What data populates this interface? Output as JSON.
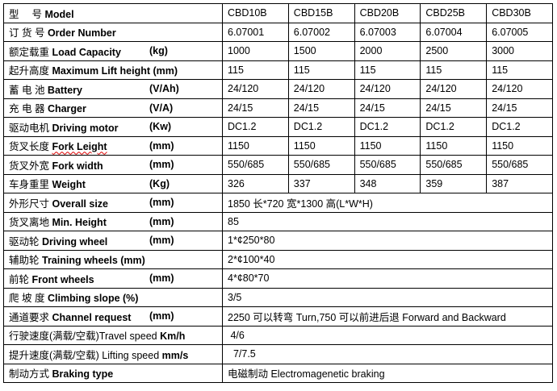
{
  "models": [
    "CBD10B",
    "CBD15B",
    "CBD20B",
    "CBD25B",
    "CBD30B"
  ],
  "rows": [
    {
      "cn": "型　 号",
      "en": "Model",
      "unit": "",
      "values": [
        "CBD10B",
        "CBD15B",
        "CBD20B",
        "CBD25B",
        "CBD30B"
      ]
    },
    {
      "cn": "订 货 号",
      "en": "Order Number",
      "unit": "",
      "values": [
        "6.07001",
        "6.07002",
        "6.07003",
        "6.07004",
        "6.07005"
      ]
    },
    {
      "cn": "额定载重 ",
      "en": "Load Capacity",
      "unit": "(kg)",
      "values": [
        "1000",
        "1500",
        "2000",
        "2500",
        "3000"
      ]
    },
    {
      "cn": "起升高度",
      "en": "Maximum Lift height (mm)",
      "unit": "",
      "values": [
        "115",
        "115",
        "115",
        "115",
        "115"
      ]
    },
    {
      "cn": "蓄 电 池 ",
      "en": "Battery",
      "unit": "(V/Ah)",
      "values": [
        "24/120",
        "24/120",
        "24/120",
        "24/120",
        "24/120"
      ]
    },
    {
      "cn": "充 电 器",
      "en": "Charger",
      "unit": "(V/A)",
      "values": [
        "24/15",
        "24/15",
        "24/15",
        "24/15",
        "24/15"
      ]
    },
    {
      "cn": "驱动电机",
      "en": "Driving motor",
      "unit": "(Kw)",
      "values": [
        "DC1.2",
        "DC1.2",
        "DC1.2",
        "DC1.2",
        "DC1.2"
      ]
    },
    {
      "cn": "货叉长度",
      "en": "Fork Leight",
      "unit": "(mm)",
      "values": [
        "1150",
        "1150",
        "1150",
        "1150",
        "1150"
      ]
    },
    {
      "cn": "货叉外宽",
      "en": "Fork width",
      "unit": "(mm)",
      "values": [
        "550/685",
        "550/685",
        "550/685",
        "550/685",
        "550/685"
      ]
    },
    {
      "cn": "车身重里",
      "en": "Weight",
      "unit": "(Kg)",
      "values": [
        "326",
        "337",
        "348",
        "359",
        "387"
      ]
    },
    {
      "cn": "外形尺寸",
      "en": "Overall size",
      "unit": "(mm)",
      "span": "1850 长*720 宽*1300 高(L*W*H)"
    },
    {
      "cn": "货叉离地",
      "en": "Min. Height",
      "unit": "(mm)",
      "span": "85"
    },
    {
      "cn": "驱动轮 ",
      "en": "Driving wheel",
      "unit": "(mm)",
      "span": "1*¢250*80"
    },
    {
      "cn": "辅助轮",
      "en": "Training wheels (mm)",
      "unit": "",
      "span": "2*¢100*40"
    },
    {
      "cn": "前轮",
      "en": "Front wheels",
      "unit": "(mm)",
      "span": "4*¢80*70"
    },
    {
      "cn": "爬 坡 度",
      "en": "Climbing slope (%)",
      "unit": "",
      "span": "3/5"
    },
    {
      "cn": "通道要求",
      "en": "Channel request",
      "unit": "(mm)",
      "span": "2250 可以转弯 Turn,750 可以前进后退 Forward and Backward"
    },
    {
      "cn": "行驶速度(满载/空载)Travel speed",
      "en": "Km/h",
      "unit": "",
      "span": " 4/6"
    },
    {
      "cn": "提升速度(满载/空载) Lifting speed",
      "en": "mm/s",
      "unit": "",
      "span": "  7/7.5"
    },
    {
      "cn": "制动方式",
      "en": "Braking type",
      "unit": "",
      "span": "电磁制动 Electromagenetic braking"
    }
  ]
}
